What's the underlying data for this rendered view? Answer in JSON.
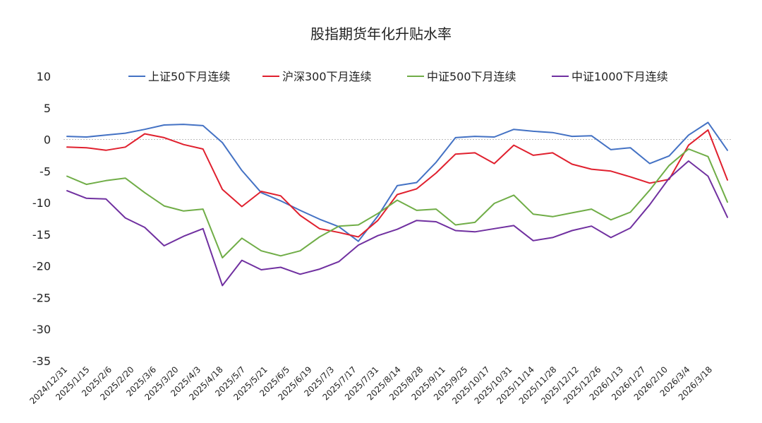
{
  "chart_data": {
    "type": "line",
    "title": "股指期货年化升贴水率",
    "xlabel": "",
    "ylabel": "",
    "ylim": [
      -35,
      10
    ],
    "yticks": [
      10,
      5,
      0,
      -5,
      -10,
      -15,
      -20,
      -25,
      -30,
      -35
    ],
    "x_tick_labels": [
      "2024/12/31",
      "2025/1/15",
      "2025/2/6",
      "2025/2/20",
      "2025/3/6",
      "2025/3/20",
      "2025/4/3",
      "2025/4/18",
      "2025/5/7",
      "2025/5/21",
      "2025/6/5",
      "2025/6/19",
      "2025/7/3",
      "2025/7/17",
      "2025/7/31",
      "2025/8/14",
      "2025/8/28",
      "2025/9/11",
      "2025/9/25",
      "2025/10/17",
      "2025/10/31",
      "2025/11/14",
      "2025/11/28",
      "2025/12/12",
      "2025/12/26",
      "2026/1/13",
      "2026/1/27",
      "2026/2/10",
      "2026/3/4",
      "2026/3/18"
    ],
    "grid": false,
    "zero_line": "dotted",
    "legend_position": "top",
    "series": [
      {
        "name": "上证50下月连续",
        "color": "#4472C4",
        "values": [
          0.5,
          0.4,
          0.7,
          1.0,
          1.6,
          2.3,
          2.4,
          2.2,
          -0.5,
          -4.9,
          -8.4,
          -9.7,
          -11.2,
          -12.6,
          -13.8,
          -16.1,
          -12.1,
          -7.3,
          -6.8,
          -3.6,
          0.3,
          0.5,
          0.4,
          1.6,
          1.3,
          1.1,
          0.5,
          0.6,
          -1.6,
          -1.3,
          -3.8,
          -2.6,
          0.7,
          2.7,
          -1.7
        ]
      },
      {
        "name": "沪深300下月连续",
        "color": "#E0202E",
        "values": [
          -1.2,
          -1.3,
          -1.7,
          -1.2,
          0.9,
          0.3,
          -0.8,
          -1.5,
          -7.9,
          -10.6,
          -8.2,
          -8.9,
          -12.0,
          -14.1,
          -14.7,
          -15.4,
          -12.8,
          -8.7,
          -7.8,
          -5.3,
          -2.3,
          -2.1,
          -3.8,
          -0.9,
          -2.5,
          -2.1,
          -3.9,
          -4.7,
          -5.0,
          -5.9,
          -6.9,
          -6.3,
          -0.9,
          1.5,
          -6.4
        ]
      },
      {
        "name": "中证500下月连续",
        "color": "#70AD47",
        "values": [
          -5.8,
          -7.1,
          -6.5,
          -6.1,
          -8.4,
          -10.5,
          -11.3,
          -11.0,
          -18.7,
          -15.6,
          -17.6,
          -18.4,
          -17.6,
          -15.4,
          -13.7,
          -13.5,
          -11.7,
          -9.6,
          -11.2,
          -11.0,
          -13.5,
          -13.1,
          -10.1,
          -8.8,
          -11.8,
          -12.2,
          -11.6,
          -11.0,
          -12.7,
          -11.5,
          -8.0,
          -4.1,
          -1.5,
          -2.7,
          -9.9
        ]
      },
      {
        "name": "中证1000下月连续",
        "color": "#7030A0",
        "values": [
          -8.1,
          -9.3,
          -9.4,
          -12.4,
          -13.9,
          -16.8,
          -15.3,
          -14.1,
          -23.1,
          -19.1,
          -20.6,
          -20.2,
          -21.3,
          -20.5,
          -19.3,
          -16.7,
          -15.2,
          -14.2,
          -12.8,
          -13.0,
          -14.4,
          -14.6,
          -14.1,
          -13.6,
          -16.0,
          -15.5,
          -14.4,
          -13.7,
          -15.5,
          -14.0,
          -10.3,
          -6.1,
          -3.4,
          -5.8,
          -12.3
        ]
      }
    ]
  }
}
